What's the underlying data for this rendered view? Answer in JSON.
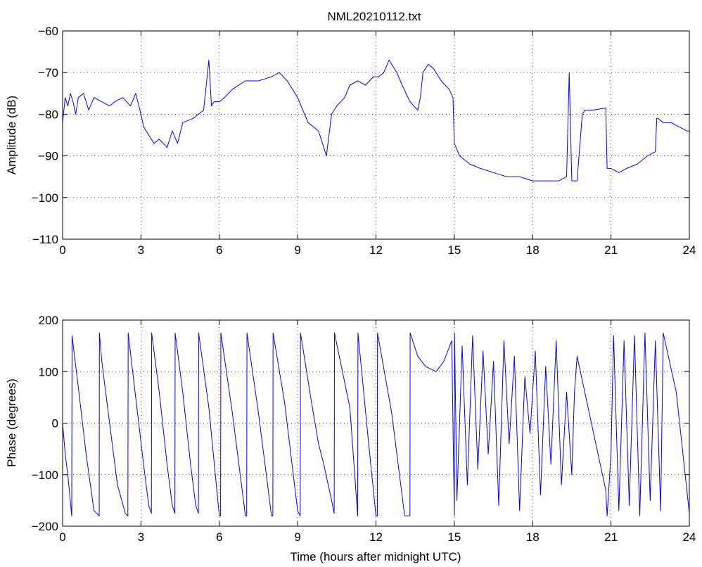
{
  "figure": {
    "title": "NML20210112.txt",
    "series_color": "#0000ff"
  },
  "chart_data": [
    {
      "type": "line",
      "title": "NML20210112.txt",
      "xlabel": "",
      "ylabel": "Amplitude (dB)",
      "xlim": [
        0,
        24
      ],
      "ylim": [
        -110,
        -60
      ],
      "xticks": [
        0,
        3,
        6,
        9,
        12,
        15,
        18,
        21,
        24
      ],
      "yticks": [
        -110,
        -100,
        -90,
        -80,
        -70,
        -60
      ],
      "grid": true,
      "series": [
        {
          "color": "#0000ff",
          "x": [
            0.0,
            0.1,
            0.2,
            0.3,
            0.4,
            0.5,
            0.6,
            0.8,
            1.0,
            1.2,
            1.5,
            1.8,
            2.0,
            2.3,
            2.6,
            2.8,
            3.0,
            3.1,
            3.3,
            3.5,
            3.7,
            4.0,
            4.2,
            4.4,
            4.6,
            5.0,
            5.4,
            5.6,
            5.7,
            5.8,
            6.0,
            6.2,
            6.5,
            7.0,
            7.5,
            8.0,
            8.3,
            8.6,
            9.0,
            9.2,
            9.4,
            9.6,
            9.8,
            10.0,
            10.1,
            10.3,
            10.5,
            10.8,
            11.0,
            11.3,
            11.6,
            11.9,
            12.1,
            12.3,
            12.5,
            12.8,
            13.0,
            13.3,
            13.6,
            13.7,
            13.8,
            14.0,
            14.2,
            14.5,
            14.8,
            14.95,
            15.0,
            15.2,
            15.6,
            16.0,
            16.5,
            17.0,
            17.5,
            18.0,
            18.5,
            19.0,
            19.3,
            19.4,
            19.5,
            19.7,
            19.9,
            20.0,
            20.3,
            20.8,
            20.85,
            21.0,
            21.3,
            21.6,
            22.0,
            22.4,
            22.7,
            22.75,
            22.8,
            23.0,
            23.3,
            23.6,
            23.9,
            24.0
          ],
          "values": [
            -82,
            -76,
            -78,
            -75,
            -77,
            -80,
            -76,
            -75,
            -79,
            -76,
            -77,
            -78,
            -77,
            -76,
            -78,
            -75,
            -80,
            -83,
            -85,
            -87,
            -86,
            -88,
            -84,
            -87,
            -82,
            -81,
            -79,
            -67,
            -78,
            -77,
            -77,
            -76,
            -74,
            -72,
            -72,
            -71,
            -70,
            -72,
            -76,
            -79,
            -82,
            -83,
            -84,
            -88,
            -90,
            -80,
            -78,
            -76,
            -73,
            -72,
            -73,
            -71,
            -71,
            -70,
            -67,
            -70,
            -73,
            -77,
            -79,
            -76,
            -70,
            -68,
            -69,
            -72,
            -74,
            -76,
            -87,
            -90,
            -92,
            -93,
            -94,
            -95,
            -95,
            -96,
            -96,
            -96,
            -95,
            -70,
            -96,
            -96,
            -80,
            -79,
            -79,
            -78.5,
            -93,
            -93,
            -94,
            -93,
            -92,
            -90,
            -89,
            -81,
            -81,
            -82,
            -82,
            -83,
            -84,
            -84
          ]
        }
      ]
    },
    {
      "type": "line",
      "title": "",
      "xlabel": "Time (hours after midnight UTC)",
      "ylabel": "Phase (degrees)",
      "xlim": [
        0,
        24
      ],
      "ylim": [
        -200,
        200
      ],
      "xticks": [
        0,
        3,
        6,
        9,
        12,
        15,
        18,
        21,
        24
      ],
      "yticks": [
        -200,
        -100,
        0,
        100,
        200
      ],
      "grid": true,
      "series": [
        {
          "color": "#0000ff",
          "x": [
            0.0,
            0.1,
            0.2,
            0.35,
            0.36,
            0.6,
            0.9,
            1.2,
            1.4,
            1.41,
            1.5,
            1.8,
            2.1,
            2.4,
            2.5,
            2.51,
            2.8,
            3.1,
            3.3,
            3.4,
            3.41,
            3.7,
            4.0,
            4.2,
            4.3,
            4.31,
            4.6,
            4.9,
            5.1,
            5.2,
            5.21,
            5.6,
            6.0,
            6.05,
            6.06,
            6.5,
            7.0,
            7.05,
            7.06,
            7.5,
            8.0,
            8.05,
            8.06,
            8.5,
            9.0,
            9.1,
            9.11,
            9.5,
            9.8,
            10.0,
            10.3,
            10.4,
            10.41,
            11.0,
            11.3,
            11.31,
            11.7,
            12.0,
            12.05,
            12.06,
            12.6,
            13.1,
            13.3,
            13.31,
            13.6,
            13.9,
            14.3,
            14.6,
            14.9,
            15.0,
            15.01,
            15.1,
            15.3,
            15.5,
            15.7,
            15.9,
            16.1,
            16.3,
            16.5,
            16.7,
            16.9,
            17.1,
            17.3,
            17.5,
            17.7,
            17.9,
            18.1,
            18.3,
            18.5,
            18.7,
            18.9,
            19.1,
            19.3,
            19.5,
            19.6,
            19.7,
            20.8,
            20.85,
            21.0,
            21.1,
            21.3,
            21.5,
            21.7,
            21.9,
            22.1,
            22.3,
            22.5,
            22.7,
            22.9,
            23.0,
            23.5,
            24.0
          ],
          "values": [
            0,
            -60,
            -100,
            -180,
            170,
            70,
            -60,
            -170,
            -180,
            175,
            120,
            0,
            -120,
            -175,
            -180,
            175,
            50,
            -80,
            -160,
            -175,
            175,
            60,
            -80,
            -160,
            -175,
            175,
            60,
            -80,
            -160,
            -175,
            175,
            30,
            -180,
            -180,
            175,
            20,
            -180,
            -180,
            175,
            20,
            -180,
            -180,
            175,
            40,
            -170,
            -180,
            175,
            50,
            -40,
            -80,
            -150,
            -175,
            175,
            30,
            -180,
            175,
            -30,
            -180,
            -180,
            175,
            20,
            -180,
            -180,
            175,
            130,
            110,
            100,
            120,
            160,
            -180,
            175,
            -150,
            150,
            -120,
            170,
            -90,
            140,
            -60,
            120,
            -160,
            160,
            -40,
            130,
            -170,
            90,
            -20,
            140,
            -140,
            110,
            -80,
            160,
            -120,
            60,
            -100,
            60,
            130,
            -130,
            -180,
            -60,
            170,
            -170,
            160,
            -160,
            170,
            -180,
            175,
            -150,
            160,
            -170,
            175,
            60,
            -175
          ]
        }
      ]
    }
  ]
}
